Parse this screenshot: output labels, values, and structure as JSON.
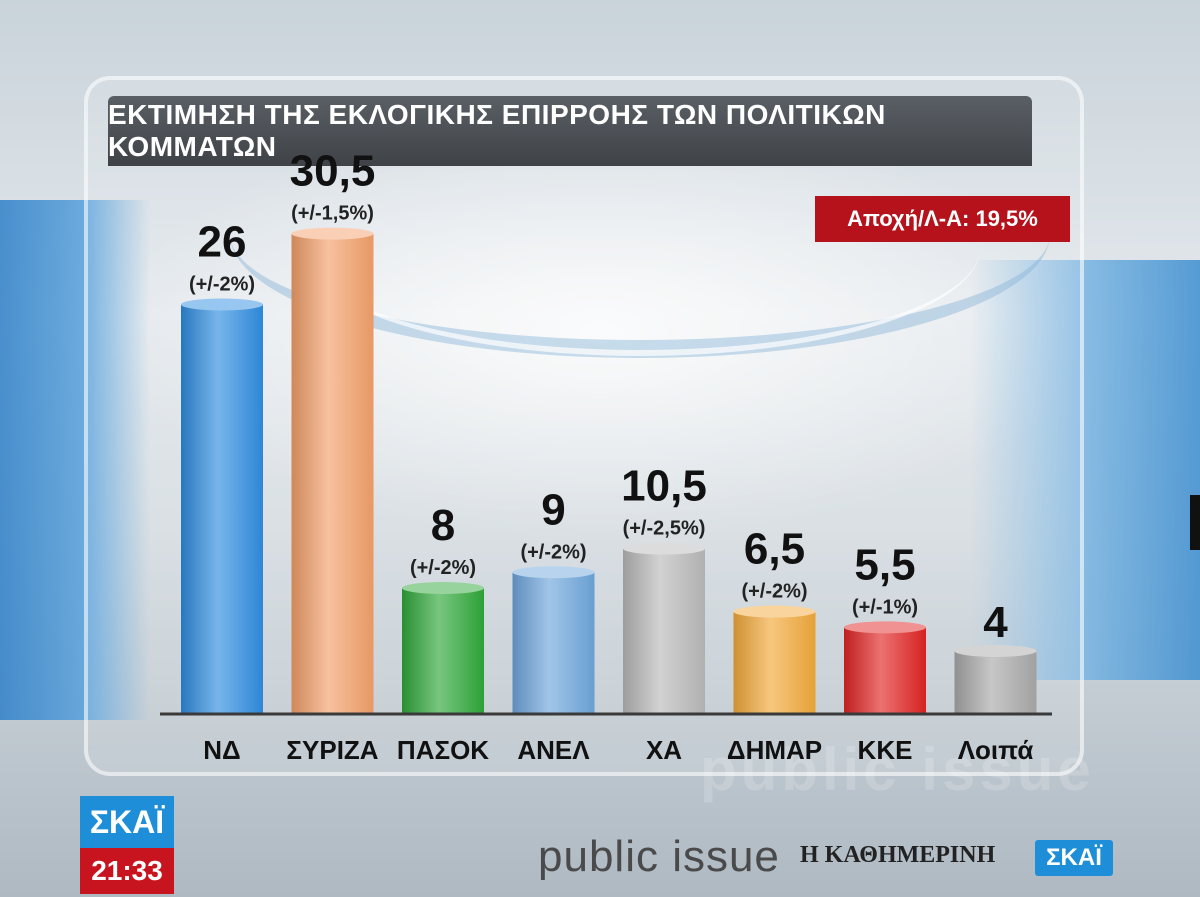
{
  "title": "ΕΚΤΙΜΗΣΗ ΤΗΣ ΕΚΛΟΓΙΚΗΣ ΕΠΙΡΡΟΗΣ ΤΩΝ ΠΟΛΙΤΙΚΩΝ ΚΟΜΜΑΤΩΝ",
  "abstention": "Αποχή/Λ-Α: 19,5%",
  "footer": {
    "pollster": "public issue",
    "newspaper": "Η ΚΑΘΗΜΕΡΙΝΗ",
    "channel": "ΣΚΑΪ"
  },
  "watermark": "public issue",
  "logo": {
    "channel": "ΣΚΑΪ",
    "time": "21:33"
  },
  "chart_data": {
    "type": "bar",
    "title": "ΕΚΤΙΜΗΣΗ ΤΗΣ ΕΚΛΟΓΙΚΗΣ ΕΠΙΡΡΟΗΣ ΤΩΝ ΠΟΛΙΤΙΚΩΝ ΚΟΜΜΑΤΩΝ",
    "categories": [
      "ΝΔ",
      "ΣΥΡΙΖΑ",
      "ΠΑΣΟΚ",
      "ΑΝΕΛ",
      "ΧΑ",
      "ΔΗΜΑΡ",
      "ΚΚΕ",
      "Λοιπά"
    ],
    "values": [
      26,
      30.5,
      8,
      9,
      10.5,
      6.5,
      5.5,
      4
    ],
    "value_labels": [
      "26",
      "30,5",
      "8",
      "9",
      "10,5",
      "6,5",
      "5,5",
      "4"
    ],
    "margins": [
      "(+/-2%)",
      "(+/-1,5%)",
      "(+/-2%)",
      "(+/-2%)",
      "(+/-2,5%)",
      "(+/-2%)",
      "(+/-1%)",
      ""
    ],
    "colors": [
      "#2f8de0",
      "#f3a06a",
      "#2fa83a",
      "#6ea6dc",
      "#b9b9b9",
      "#f2a93a",
      "#e12424",
      "#a9a9a9"
    ],
    "xlabel": "",
    "ylabel": "",
    "ylim": [
      0,
      32
    ],
    "grid": false
  }
}
